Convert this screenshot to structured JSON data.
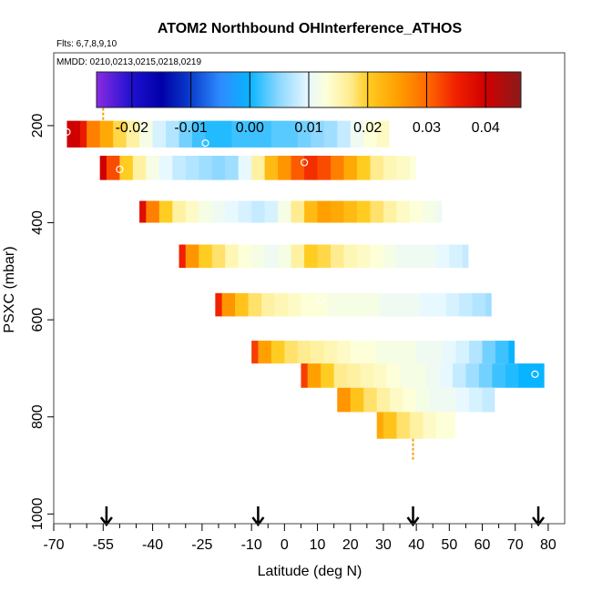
{
  "chart_data": {
    "type": "heatmap",
    "title": "ATOM2 Northbound OHInterference_ATHOS",
    "subtitle_flights": "Flts: 6,7,8,9,10",
    "subtitle_dates": "MMDD: 0210,0213,0215,0218,0219",
    "xlabel": "Latitude (deg N)",
    "ylabel": "PSXC (mbar)",
    "xlim": [
      -70,
      85
    ],
    "ylim": [
      1020,
      50
    ],
    "x_tick_labels": [
      "-70",
      "-55",
      "-40",
      "-25",
      "-10",
      "0",
      "10",
      "20",
      "30",
      "40",
      "50",
      "60",
      "70",
      "80"
    ],
    "x_tick_values": [
      -70,
      -55,
      -40,
      -25,
      -10,
      0,
      10,
      20,
      30,
      40,
      50,
      60,
      70,
      80
    ],
    "x_minor_ticks": [
      -65,
      -60,
      -50,
      -45,
      -35,
      -30,
      -20,
      -15,
      -5,
      5,
      15,
      25,
      35,
      45,
      55,
      65,
      75
    ],
    "y_tick_labels": [
      "200",
      "400",
      "600",
      "800",
      "1000"
    ],
    "y_tick_values": [
      200,
      400,
      600,
      800,
      1000
    ],
    "colorbar": {
      "min": -0.026,
      "max": 0.046,
      "tick_labels": [
        "-0.02",
        "-0.01",
        "0.00",
        "0.01",
        "0.02",
        "0.03",
        "0.04"
      ],
      "tick_values": [
        -0.02,
        -0.01,
        0.0,
        0.01,
        0.02,
        0.03,
        0.04
      ],
      "stops": [
        {
          "v": -0.026,
          "c": "#8a2be2"
        },
        {
          "v": -0.02,
          "c": "#1e10d0"
        },
        {
          "v": -0.015,
          "c": "#0000a8"
        },
        {
          "v": -0.01,
          "c": "#0a3ecc"
        },
        {
          "v": -0.005,
          "c": "#2e8bff"
        },
        {
          "v": 0.0,
          "c": "#08b4ff"
        },
        {
          "v": 0.005,
          "c": "#8ed8ff"
        },
        {
          "v": 0.01,
          "c": "#e8f8ff"
        },
        {
          "v": 0.013,
          "c": "#fcffd8"
        },
        {
          "v": 0.017,
          "c": "#ffec90"
        },
        {
          "v": 0.02,
          "c": "#ffcc22"
        },
        {
          "v": 0.025,
          "c": "#ffa000"
        },
        {
          "v": 0.03,
          "c": "#ff6a00"
        },
        {
          "v": 0.035,
          "c": "#f02000"
        },
        {
          "v": 0.04,
          "c": "#d00000"
        },
        {
          "v": 0.046,
          "c": "#8a1a1a"
        }
      ]
    },
    "series": [
      {
        "name": "band-200",
        "p_top": 190,
        "p_bot": 245,
        "lat": [
          -66,
          -62,
          -60,
          -56,
          -52,
          -48,
          -44,
          -40,
          -36,
          -32,
          -28,
          -24,
          -20,
          -16,
          -12,
          -8,
          -4,
          0,
          4,
          8,
          12,
          16,
          20,
          24,
          28,
          30
        ],
        "values": [
          0.04,
          0.036,
          0.028,
          0.024,
          0.019,
          0.016,
          0.012,
          0.009,
          0.007,
          0.004,
          0.002,
          0.001,
          0.001,
          0.002,
          0.002,
          0.002,
          0.003,
          0.003,
          0.004,
          0.005,
          0.006,
          0.008,
          0.011,
          0.013,
          0.014,
          0.014
        ]
      },
      {
        "name": "band-290",
        "p_top": 262,
        "p_bot": 312,
        "lat": [
          -56,
          -54,
          -50,
          -46,
          -42,
          -38,
          -34,
          -30,
          -26,
          -22,
          -18,
          -14,
          -10,
          -6,
          -2,
          2,
          6,
          10,
          14,
          18,
          22,
          26,
          30,
          34,
          38
        ],
        "values": [
          0.04,
          0.032,
          0.02,
          0.016,
          0.012,
          0.01,
          0.008,
          0.007,
          0.006,
          0.005,
          0.006,
          0.01,
          0.016,
          0.022,
          0.026,
          0.031,
          0.034,
          0.032,
          0.028,
          0.024,
          0.02,
          0.017,
          0.015,
          0.014,
          0.013
        ]
      },
      {
        "name": "band-380",
        "p_top": 355,
        "p_bot": 400,
        "lat": [
          -44,
          -42,
          -38,
          -34,
          -30,
          -26,
          -22,
          -18,
          -14,
          -10,
          -6,
          -2,
          2,
          6,
          10,
          14,
          18,
          22,
          26,
          30,
          34,
          38,
          42,
          46
        ],
        "values": [
          0.038,
          0.028,
          0.02,
          0.016,
          0.014,
          0.012,
          0.011,
          0.01,
          0.009,
          0.008,
          0.009,
          0.012,
          0.017,
          0.022,
          0.025,
          0.024,
          0.022,
          0.02,
          0.018,
          0.016,
          0.014,
          0.013,
          0.012,
          0.011
        ]
      },
      {
        "name": "band-480",
        "p_top": 445,
        "p_bot": 493,
        "lat": [
          -32,
          -30,
          -26,
          -22,
          -18,
          -14,
          -10,
          -6,
          -2,
          2,
          6,
          10,
          14,
          18,
          22,
          26,
          30,
          34,
          38,
          42,
          46,
          50,
          54
        ],
        "values": [
          0.035,
          0.026,
          0.02,
          0.018,
          0.015,
          0.013,
          0.012,
          0.011,
          0.012,
          0.016,
          0.02,
          0.019,
          0.017,
          0.015,
          0.014,
          0.013,
          0.012,
          0.011,
          0.011,
          0.011,
          0.01,
          0.009,
          0.008
        ]
      },
      {
        "name": "band-560",
        "p_top": 545,
        "p_bot": 593,
        "lat": [
          -21,
          -19,
          -15,
          -11,
          -7,
          -3,
          1,
          5,
          9,
          13,
          17,
          21,
          25,
          29,
          33,
          37,
          41,
          45,
          49,
          53,
          57,
          61
        ],
        "values": [
          0.035,
          0.026,
          0.021,
          0.018,
          0.016,
          0.015,
          0.014,
          0.013,
          0.013,
          0.012,
          0.012,
          0.012,
          0.012,
          0.011,
          0.011,
          0.011,
          0.01,
          0.01,
          0.009,
          0.008,
          0.007,
          0.006
        ]
      },
      {
        "name": "band-660",
        "p_top": 643,
        "p_bot": 690,
        "lat": [
          -10,
          -8,
          -4,
          0,
          4,
          8,
          12,
          16,
          20,
          24,
          28,
          32,
          36,
          40,
          44,
          48,
          52,
          56,
          60,
          64,
          68
        ],
        "values": [
          0.033,
          0.025,
          0.02,
          0.018,
          0.017,
          0.016,
          0.015,
          0.014,
          0.013,
          0.013,
          0.012,
          0.012,
          0.012,
          0.011,
          0.011,
          0.01,
          0.009,
          0.007,
          0.004,
          0.002,
          0.0
        ]
      },
      {
        "name": "band-720",
        "p_top": 690,
        "p_bot": 740,
        "lat": [
          5,
          7,
          11,
          15,
          19,
          23,
          27,
          31,
          35,
          39,
          43,
          47,
          51,
          55,
          59,
          63,
          67,
          71,
          75,
          77
        ],
        "values": [
          0.033,
          0.025,
          0.02,
          0.017,
          0.016,
          0.015,
          0.014,
          0.013,
          0.012,
          0.012,
          0.011,
          0.01,
          0.008,
          0.006,
          0.004,
          0.002,
          0.001,
          0.0,
          0.0,
          0.0
        ]
      },
      {
        "name": "band-790",
        "p_top": 740,
        "p_bot": 790,
        "lat": [
          16,
          20,
          24,
          28,
          32,
          36,
          40,
          44,
          48,
          52,
          56,
          60,
          62
        ],
        "values": [
          0.026,
          0.021,
          0.018,
          0.016,
          0.014,
          0.013,
          0.012,
          0.011,
          0.011,
          0.01,
          0.009,
          0.008,
          0.008
        ]
      },
      {
        "name": "band-850",
        "p_top": 790,
        "p_bot": 845,
        "lat": [
          28,
          30,
          34,
          38,
          42,
          46,
          50
        ],
        "values": [
          0.024,
          0.021,
          0.018,
          0.016,
          0.014,
          0.013,
          0.013
        ]
      }
    ],
    "markers": [
      {
        "lat": -66,
        "p": 213
      },
      {
        "lat": -24,
        "p": 236
      },
      {
        "lat": -50,
        "p": 290
      },
      {
        "lat": 6,
        "p": 276
      },
      {
        "lat": 11,
        "p": 560
      },
      {
        "lat": 76,
        "p": 712
      }
    ],
    "orange_segments": [
      {
        "lat": -55,
        "p_from": 145,
        "p_to": 190
      },
      {
        "lat": 39,
        "p_from": 845,
        "p_to": 888
      }
    ],
    "arrows_lat": [
      -54,
      -8,
      39,
      77
    ]
  }
}
